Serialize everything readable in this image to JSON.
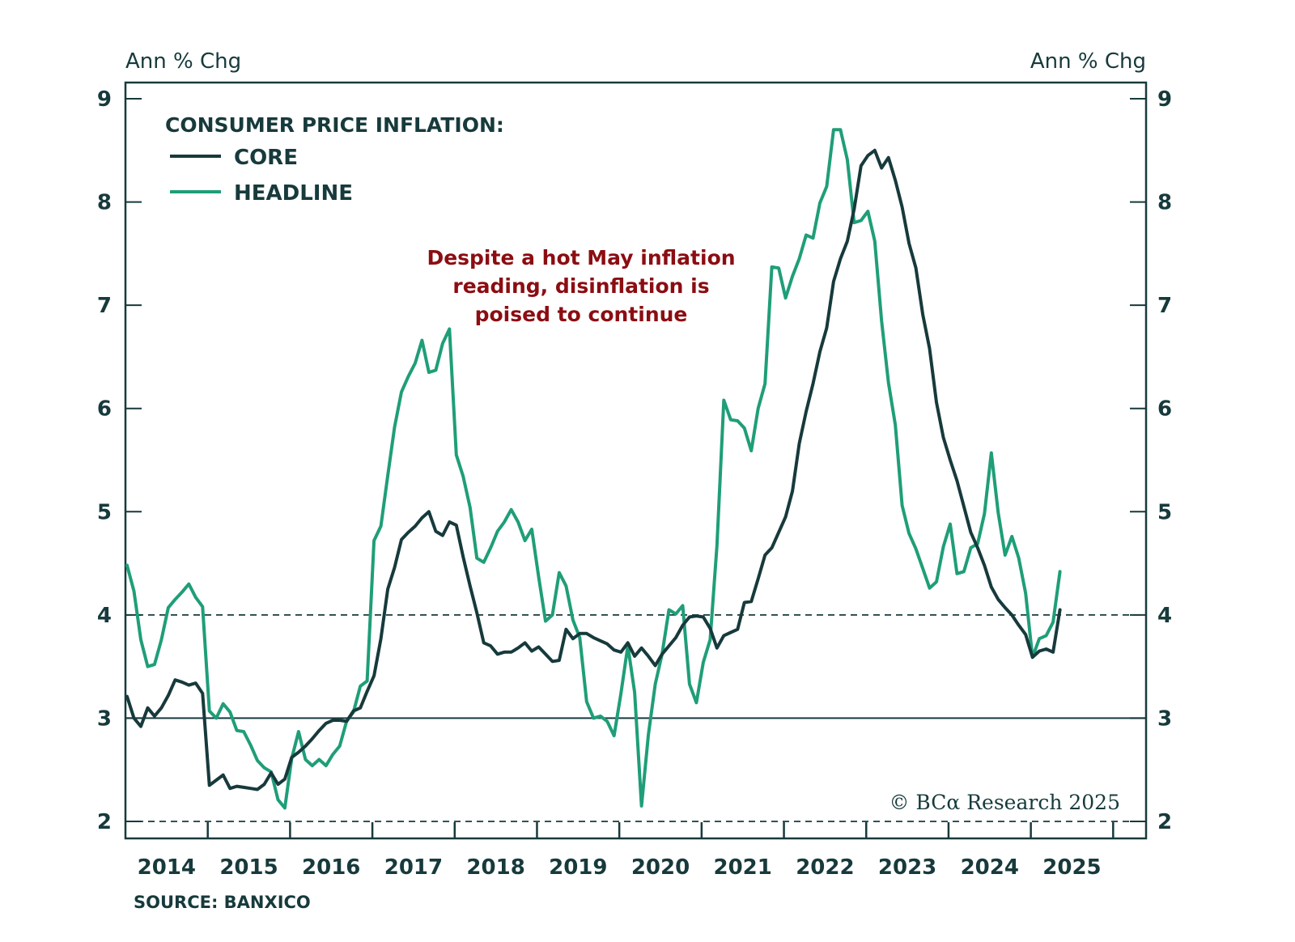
{
  "chart_data": {
    "type": "line",
    "title": "CONSUMER PRICE INFLATION:",
    "ylabel_left": "Ann % Chg",
    "ylabel_right": "Ann % Chg",
    "xlabel": "",
    "ylim": [
      2,
      9
    ],
    "yticks": [
      2,
      3,
      4,
      5,
      6,
      7,
      8,
      9
    ],
    "ytick_labels": [
      "2",
      "3",
      "4",
      "5",
      "6",
      "7",
      "8",
      "9"
    ],
    "x_start": "2014-01",
    "x_frequency": "monthly",
    "xlim_years": [
      2014,
      2026.4
    ],
    "xtick_labels": [
      "2014",
      "2015",
      "2016",
      "2017",
      "2018",
      "2019",
      "2020",
      "2021",
      "2022",
      "2023",
      "2024",
      "2025"
    ],
    "reference_lines": [
      {
        "value": 2,
        "style": "dashed"
      },
      {
        "value": 3,
        "style": "solid"
      },
      {
        "value": 4,
        "style": "dashed"
      }
    ],
    "grid": false,
    "legend_position": "top-left",
    "series": [
      {
        "name": "CORE",
        "color": "#173a3c",
        "values": [
          3.21,
          3.0,
          2.92,
          3.1,
          3.02,
          3.1,
          3.22,
          3.37,
          3.35,
          3.32,
          3.34,
          3.24,
          2.35,
          2.4,
          2.45,
          2.32,
          2.34,
          2.33,
          2.32,
          2.31,
          2.36,
          2.47,
          2.36,
          2.41,
          2.62,
          2.67,
          2.73,
          2.8,
          2.88,
          2.95,
          2.98,
          2.98,
          2.97,
          3.07,
          3.1,
          3.26,
          3.41,
          3.77,
          4.25,
          4.46,
          4.73,
          4.8,
          4.86,
          4.94,
          5.0,
          4.81,
          4.77,
          4.9,
          4.87,
          4.56,
          4.28,
          4.02,
          3.73,
          3.7,
          3.62,
          3.64,
          3.64,
          3.68,
          3.73,
          3.65,
          3.69,
          3.62,
          3.55,
          3.56,
          3.86,
          3.77,
          3.82,
          3.82,
          3.78,
          3.75,
          3.72,
          3.66,
          3.64,
          3.73,
          3.6,
          3.68,
          3.6,
          3.51,
          3.62,
          3.7,
          3.78,
          3.9,
          3.98,
          3.99,
          3.98,
          3.87,
          3.68,
          3.8,
          3.83,
          3.86,
          4.12,
          4.13,
          4.35,
          4.58,
          4.65,
          4.8,
          4.95,
          5.2,
          5.66,
          5.97,
          6.24,
          6.55,
          6.78,
          7.23,
          7.45,
          7.62,
          7.93,
          8.35,
          8.45,
          8.5,
          8.33,
          8.43,
          8.21,
          7.95,
          7.6,
          7.36,
          6.91,
          6.58,
          6.06,
          5.72,
          5.5,
          5.3,
          5.05,
          4.8,
          4.65,
          4.48,
          4.27,
          4.15,
          4.07,
          4.0,
          3.9,
          3.81,
          3.59,
          3.65,
          3.67,
          3.64,
          4.05
        ]
      },
      {
        "name": "HEADLINE",
        "color": "#1f9e78",
        "values": [
          4.48,
          4.23,
          3.76,
          3.5,
          3.52,
          3.76,
          4.07,
          4.15,
          4.22,
          4.3,
          4.17,
          4.08,
          3.07,
          3.0,
          3.14,
          3.06,
          2.88,
          2.87,
          2.74,
          2.59,
          2.52,
          2.48,
          2.21,
          2.13,
          2.61,
          2.87,
          2.6,
          2.54,
          2.6,
          2.54,
          2.65,
          2.73,
          2.97,
          3.06,
          3.31,
          3.36,
          4.72,
          4.86,
          5.35,
          5.82,
          6.16,
          6.31,
          6.44,
          6.66,
          6.35,
          6.37,
          6.63,
          6.77,
          5.55,
          5.34,
          5.04,
          4.55,
          4.51,
          4.65,
          4.81,
          4.9,
          5.02,
          4.9,
          4.72,
          4.83,
          4.37,
          3.94,
          4.0,
          4.41,
          4.28,
          3.95,
          3.78,
          3.16,
          3.0,
          3.02,
          2.97,
          2.83,
          3.24,
          3.7,
          3.25,
          2.15,
          2.84,
          3.33,
          3.62,
          4.05,
          4.01,
          4.09,
          3.33,
          3.15,
          3.54,
          3.76,
          4.67,
          6.08,
          5.89,
          5.88,
          5.81,
          5.59,
          6.0,
          6.24,
          7.37,
          7.36,
          7.07,
          7.28,
          7.45,
          7.68,
          7.65,
          7.99,
          8.15,
          8.7,
          8.7,
          8.41,
          7.8,
          7.82,
          7.91,
          7.62,
          6.85,
          6.25,
          5.84,
          5.06,
          4.79,
          4.64,
          4.45,
          4.26,
          4.32,
          4.66,
          4.88,
          4.4,
          4.42,
          4.65,
          4.69,
          4.98,
          5.57,
          4.99,
          4.58,
          4.76,
          4.55,
          4.21,
          3.59,
          3.77,
          3.8,
          3.93,
          4.42
        ]
      }
    ],
    "annotation": [
      "Despite a hot May inflation",
      "reading, disinflation is",
      "poised to continue"
    ],
    "annotation_color": "#8b0d12",
    "source": "SOURCE: BANXICO",
    "copyright": "© BCα Research 2025"
  }
}
